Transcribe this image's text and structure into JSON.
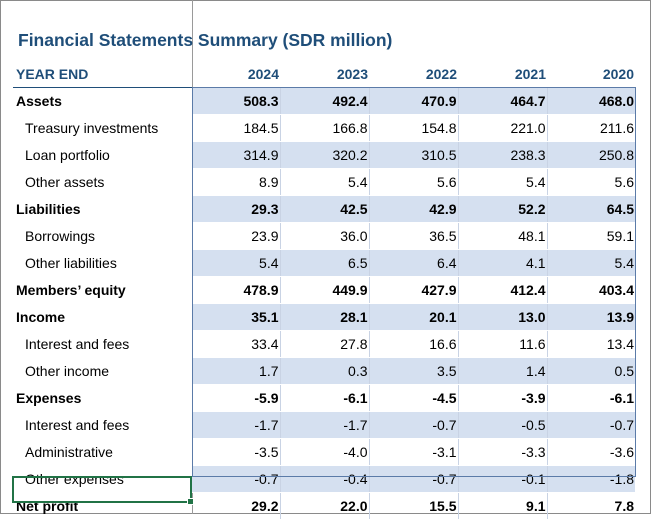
{
  "title": "Financial Statements Summary (SDR million)",
  "header": {
    "label": "YEAR END",
    "years": [
      "2024",
      "2023",
      "2022",
      "2021",
      "2020"
    ]
  },
  "rows": [
    {
      "label": "Assets",
      "values": [
        "508.3",
        "492.4",
        "470.9",
        "464.7",
        "468.0"
      ],
      "bold": true,
      "shade": true
    },
    {
      "label": "Treasury investments",
      "values": [
        "184.5",
        "166.8",
        "154.8",
        "221.0",
        "211.6"
      ],
      "bold": false,
      "shade": false
    },
    {
      "label": "Loan portfolio",
      "values": [
        "314.9",
        "320.2",
        "310.5",
        "238.3",
        "250.8"
      ],
      "bold": false,
      "shade": true
    },
    {
      "label": "Other assets",
      "values": [
        "8.9",
        "5.4",
        "5.6",
        "5.4",
        "5.6"
      ],
      "bold": false,
      "shade": false
    },
    {
      "label": "Liabilities",
      "values": [
        "29.3",
        "42.5",
        "42.9",
        "52.2",
        "64.5"
      ],
      "bold": true,
      "shade": true
    },
    {
      "label": "Borrowings",
      "values": [
        "23.9",
        "36.0",
        "36.5",
        "48.1",
        "59.1"
      ],
      "bold": false,
      "shade": false
    },
    {
      "label": "Other liabilities",
      "values": [
        "5.4",
        "6.5",
        "6.4",
        "4.1",
        "5.4"
      ],
      "bold": false,
      "shade": true
    },
    {
      "label": "Members’ equity",
      "values": [
        "478.9",
        "449.9",
        "427.9",
        "412.4",
        "403.4"
      ],
      "bold": true,
      "shade": false
    },
    {
      "label": "Income",
      "values": [
        "35.1",
        "28.1",
        "20.1",
        "13.0",
        "13.9"
      ],
      "bold": true,
      "shade": true
    },
    {
      "label": "Interest and fees",
      "values": [
        "33.4",
        "27.8",
        "16.6",
        "11.6",
        "13.4"
      ],
      "bold": false,
      "shade": false
    },
    {
      "label": "Other income",
      "values": [
        "1.7",
        "0.3",
        "3.5",
        "1.4",
        "0.5"
      ],
      "bold": false,
      "shade": true
    },
    {
      "label": "Expenses",
      "values": [
        "-5.9",
        "-6.1",
        "-4.5",
        "-3.9",
        "-6.1"
      ],
      "bold": true,
      "shade": false
    },
    {
      "label": "Interest and fees",
      "values": [
        "-1.7",
        "-1.7",
        "-0.7",
        "-0.5",
        "-0.7"
      ],
      "bold": false,
      "shade": true
    },
    {
      "label": "Administrative",
      "values": [
        "-3.5",
        "-4.0",
        "-3.1",
        "-3.3",
        "-3.6"
      ],
      "bold": false,
      "shade": false
    },
    {
      "label": "Other expenses",
      "values": [
        "-0.7",
        "-0.4",
        "-0.7",
        "-0.1",
        "-1.8"
      ],
      "bold": false,
      "shade": true
    },
    {
      "label": "Net profit",
      "values": [
        "29.2",
        "22.0",
        "15.5",
        "9.1",
        "7.8"
      ],
      "bold": true,
      "shade": false
    }
  ],
  "colors": {
    "title": "#1f4e79",
    "row_shade": "#d5e0f0",
    "frame": "#5b7ba8",
    "selection": "#217346"
  }
}
